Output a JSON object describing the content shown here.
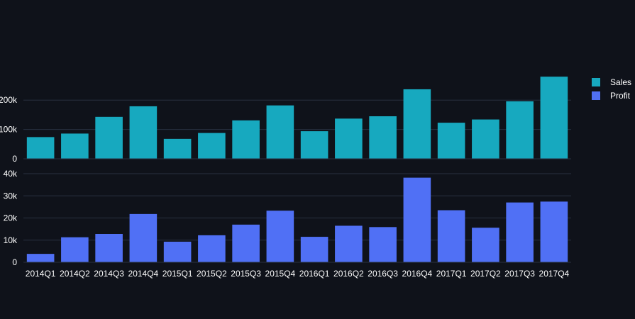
{
  "chart_data": [
    {
      "type": "bar",
      "categories": [
        "2014Q1",
        "2014Q2",
        "2014Q3",
        "2014Q4",
        "2015Q1",
        "2015Q2",
        "2015Q3",
        "2015Q4",
        "2016Q1",
        "2016Q2",
        "2016Q3",
        "2016Q4",
        "2017Q1",
        "2017Q2",
        "2017Q3",
        "2017Q4"
      ],
      "series": [
        {
          "name": "Sales",
          "color": "#17a9bf",
          "values": [
            74000,
            86000,
            143000,
            179000,
            68000,
            88000,
            131000,
            182000,
            94000,
            137000,
            145000,
            237000,
            123000,
            134000,
            196000,
            280000
          ]
        }
      ],
      "ylim": [
        0,
        290000
      ],
      "yticks": [
        0,
        100000,
        200000
      ],
      "ytick_labels": [
        "0",
        "100k",
        "200k"
      ],
      "xlabel": "",
      "ylabel": "",
      "grid": true
    },
    {
      "type": "bar",
      "categories": [
        "2014Q1",
        "2014Q2",
        "2014Q3",
        "2014Q4",
        "2015Q1",
        "2015Q2",
        "2015Q3",
        "2015Q4",
        "2016Q1",
        "2016Q2",
        "2016Q3",
        "2016Q4",
        "2017Q1",
        "2017Q2",
        "2017Q3",
        "2017Q4"
      ],
      "series": [
        {
          "name": "Profit",
          "color": "#5070f5",
          "values": [
            3800,
            11300,
            12800,
            21800,
            9300,
            12200,
            17000,
            23300,
            11500,
            16500,
            15900,
            38200,
            23500,
            15600,
            27000,
            27400
          ]
        }
      ],
      "ylim": [
        0,
        40000
      ],
      "yticks": [
        0,
        10000,
        20000,
        30000,
        40000
      ],
      "ytick_labels": [
        "0",
        "10k",
        "20k",
        "30k",
        "40k"
      ],
      "xlabel": "",
      "ylabel": "",
      "grid": true
    }
  ],
  "legend": [
    {
      "label": "Sales",
      "color": "#17a9bf"
    },
    {
      "label": "Profit",
      "color": "#5070f5"
    }
  ],
  "colors": {
    "background": "#0f121a",
    "grid": "#283040",
    "text": "#ffffff"
  }
}
